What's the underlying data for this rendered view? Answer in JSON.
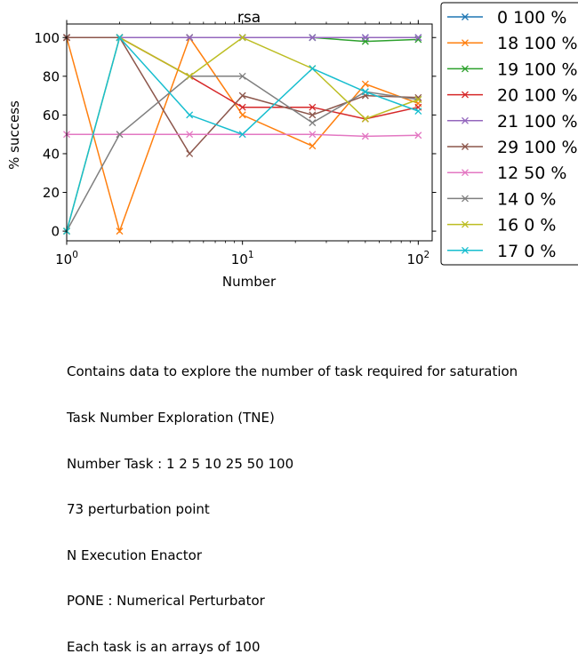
{
  "chart_data": {
    "type": "line",
    "title": "rsa",
    "xlabel": "Number",
    "ylabel": "% success",
    "xscale": "log",
    "xlim": [
      1,
      120
    ],
    "ylim": [
      -5,
      107
    ],
    "x": [
      1,
      2,
      5,
      10,
      25,
      50,
      100
    ],
    "x_ticks": [
      {
        "value": 1,
        "base": "10",
        "exp": "0"
      },
      {
        "value": 10,
        "base": "10",
        "exp": "1"
      },
      {
        "value": 100,
        "base": "10",
        "exp": "2"
      }
    ],
    "y_ticks": [
      0,
      20,
      40,
      60,
      80,
      100
    ],
    "marker": "x",
    "grid": false,
    "legend_position": "outside-right",
    "series": [
      {
        "name": "0 100 %",
        "color": "#1f77b4",
        "values": [
          100,
          100,
          100,
          100,
          100,
          100,
          100
        ]
      },
      {
        "name": "18 100 %",
        "color": "#ff7f0e",
        "values": [
          100,
          0,
          100,
          60,
          44,
          76,
          66
        ]
      },
      {
        "name": "19 100 %",
        "color": "#2ca02c",
        "values": [
          100,
          100,
          100,
          100,
          100,
          98,
          99
        ]
      },
      {
        "name": "20 100 %",
        "color": "#d62728",
        "values": [
          100,
          100,
          80,
          64,
          64,
          58,
          64
        ]
      },
      {
        "name": "21 100 %",
        "color": "#9467bd",
        "values": [
          100,
          100,
          100,
          100,
          100,
          100,
          100
        ]
      },
      {
        "name": "29 100 %",
        "color": "#8c564b",
        "values": [
          100,
          100,
          40,
          70,
          60,
          70,
          69
        ]
      },
      {
        "name": "12 50 %",
        "color": "#e377c2",
        "values": [
          50,
          50,
          50,
          50,
          50,
          49,
          49.5
        ]
      },
      {
        "name": "14 0 %",
        "color": "#7f7f7f",
        "values": [
          0,
          50,
          80,
          80,
          56,
          72,
          68
        ]
      },
      {
        "name": "16 0 %",
        "color": "#bcbd22",
        "values": [
          0,
          100,
          80,
          100,
          84,
          58,
          68
        ]
      },
      {
        "name": "17 0 %",
        "color": "#17becf",
        "values": [
          0,
          100,
          60,
          50,
          84,
          72,
          62
        ]
      }
    ]
  },
  "caption": [
    "Contains data to explore the number of task required for saturation",
    "Task Number Exploration (TNE)",
    "Number Task : 1 2 5 10 25 50 100",
    "73 perturbation point",
    "N Execution Enactor",
    "PONE : Numerical Perturbator",
    "Each task is an arrays of 100"
  ]
}
